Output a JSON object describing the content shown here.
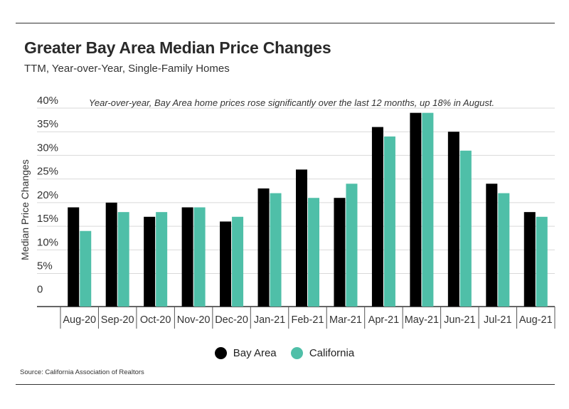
{
  "title": "Greater Bay Area Median Price Changes",
  "subtitle": "TTM, Year-over-Year, Single-Family Homes",
  "annotation": "Year-over-year, Bay Area home prices rose significantly over the last 12 months, up 18% in August.",
  "source": "Source:  California Association of Realtors",
  "colors": {
    "bay_area": "#000000",
    "california": "#4fbfa8"
  },
  "chart_data": {
    "type": "bar",
    "categories": [
      "Aug-20",
      "Sep-20",
      "Oct-20",
      "Nov-20",
      "Dec-20",
      "Jan-21",
      "Feb-21",
      "Mar-21",
      "Apr-21",
      "May-21",
      "Jun-21",
      "Jul-21",
      "Aug-21"
    ],
    "series": [
      {
        "name": "Bay Area",
        "values": [
          19,
          20,
          17,
          19,
          16,
          23,
          27,
          21,
          36,
          39,
          35,
          24,
          18
        ]
      },
      {
        "name": "California",
        "values": [
          14,
          18,
          18,
          19,
          17,
          22,
          21,
          24,
          34,
          39,
          31,
          22,
          17
        ]
      }
    ],
    "ylabel": "Median Price Changes",
    "yticks": [
      "0",
      "5%",
      "10%",
      "15%",
      "20%",
      "25%",
      "30%",
      "35%",
      "40%"
    ],
    "ylim": [
      -2,
      40
    ],
    "grid": true,
    "legend_position": "bottom"
  }
}
